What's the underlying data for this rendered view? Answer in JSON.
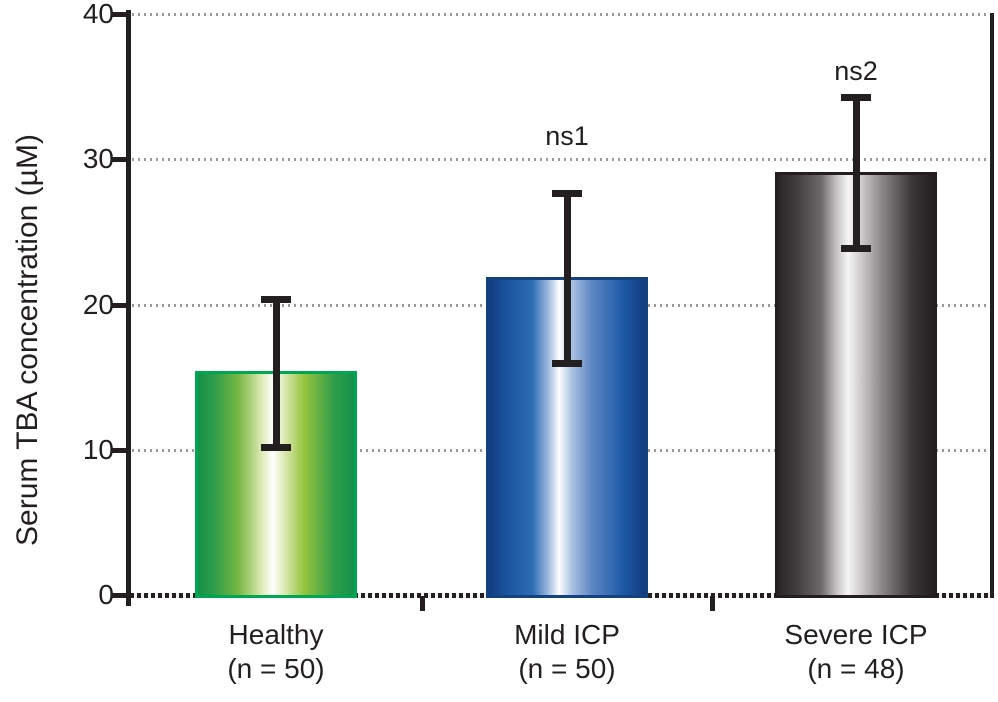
{
  "chart_data": {
    "type": "bar",
    "title": "",
    "ylabel": "Serum TBA concentration (µM)",
    "xlabel": "",
    "ylim": [
      0,
      40
    ],
    "yticks": [
      0,
      10,
      20,
      30,
      40
    ],
    "grid": {
      "horizontal": true,
      "style": "dotted",
      "at": [
        10,
        20,
        30,
        40
      ]
    },
    "legend": "none",
    "categories": [
      "Healthy",
      "Mild ICP",
      "Severe ICP"
    ],
    "series": [
      {
        "name": "Serum TBA concentration",
        "values": [
          15.4,
          21.9,
          29.1
        ],
        "error_low": [
          10.2,
          16.0,
          23.9
        ],
        "error_high": [
          20.4,
          27.7,
          34.3
        ]
      }
    ],
    "bars": [
      {
        "category": "Healthy",
        "n_label": "(n = 50)",
        "value": 15.4,
        "whisker_low": 10.2,
        "whisker_high": 20.4,
        "annotation": "",
        "theme": "green"
      },
      {
        "category": "Mild ICP",
        "n_label": "(n = 50)",
        "value": 21.9,
        "whisker_low": 16.0,
        "whisker_high": 27.7,
        "annotation": "ns1",
        "theme": "blue"
      },
      {
        "category": "Severe ICP",
        "n_label": "(n = 48)",
        "value": 29.1,
        "whisker_low": 23.9,
        "whisker_high": 34.3,
        "annotation": "ns2",
        "theme": "black"
      }
    ]
  },
  "colors": {
    "background": "#ffffff",
    "axis": "#231f20",
    "gridline": "#9a9a9a",
    "error_bar": "#231f20",
    "themes": {
      "green": {
        "border": "#00a651",
        "stops": [
          "#15914a 0%",
          "#2d9c4a 10%",
          "#77b742 26%",
          "#d8e7ad 40%",
          "#ffffff 48%",
          "#d8e7ad 56%",
          "#95c43e 68%",
          "#2d9c4a 88%",
          "#15914a 100%"
        ]
      },
      "blue": {
        "border": "#14427f",
        "stops": [
          "#123d83 0%",
          "#1b55a0 12%",
          "#2d6cb5 28%",
          "#9fbade 38%",
          "#ffffff 45%",
          "#abc3e3 53%",
          "#5d86c3 66%",
          "#1d59a7 86%",
          "#123c80 100%"
        ]
      },
      "black": {
        "border": "#231f20",
        "stops": [
          "#2a2627 0%",
          "#413d3e 12%",
          "#6f6b6c 28%",
          "#c9c7c8 38%",
          "#f6f5f5 45%",
          "#cecccd 53%",
          "#8e8a8c 66%",
          "#3a3637 86%",
          "#231f20 100%"
        ]
      }
    }
  }
}
